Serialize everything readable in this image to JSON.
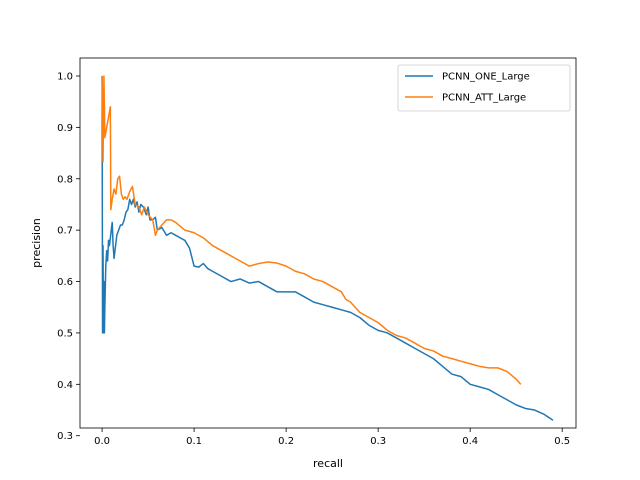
{
  "chart_data": {
    "type": "line",
    "title": "",
    "xlabel": "recall",
    "ylabel": "precision",
    "xlim": [
      -0.024,
      0.515
    ],
    "ylim": [
      0.315,
      1.035
    ],
    "xticks": [
      0.0,
      0.1,
      0.2,
      0.3,
      0.4,
      0.5
    ],
    "yticks": [
      0.3,
      0.4,
      0.5,
      0.6,
      0.7,
      0.8,
      0.9,
      1.0
    ],
    "grid": false,
    "legend": "top-right",
    "series": [
      {
        "name": "PCNN_ONE_Large",
        "color": "#1f77b4",
        "points": [
          [
            0.0,
            1.0
          ],
          [
            0.0005,
            0.5
          ],
          [
            0.001,
            0.67
          ],
          [
            0.0015,
            0.5
          ],
          [
            0.002,
            0.6
          ],
          [
            0.0025,
            0.5
          ],
          [
            0.003,
            0.55
          ],
          [
            0.004,
            0.63
          ],
          [
            0.005,
            0.66
          ],
          [
            0.006,
            0.64
          ],
          [
            0.007,
            0.68
          ],
          [
            0.008,
            0.67
          ],
          [
            0.01,
            0.7
          ],
          [
            0.011,
            0.715
          ],
          [
            0.012,
            0.67
          ],
          [
            0.013,
            0.645
          ],
          [
            0.014,
            0.66
          ],
          [
            0.016,
            0.69
          ],
          [
            0.018,
            0.7
          ],
          [
            0.02,
            0.71
          ],
          [
            0.022,
            0.71
          ],
          [
            0.024,
            0.72
          ],
          [
            0.026,
            0.735
          ],
          [
            0.028,
            0.74
          ],
          [
            0.03,
            0.76
          ],
          [
            0.032,
            0.75
          ],
          [
            0.034,
            0.76
          ],
          [
            0.036,
            0.745
          ],
          [
            0.038,
            0.755
          ],
          [
            0.04,
            0.735
          ],
          [
            0.042,
            0.75
          ],
          [
            0.045,
            0.745
          ],
          [
            0.048,
            0.73
          ],
          [
            0.05,
            0.745
          ],
          [
            0.052,
            0.72
          ],
          [
            0.055,
            0.72
          ],
          [
            0.058,
            0.725
          ],
          [
            0.06,
            0.7
          ],
          [
            0.065,
            0.705
          ],
          [
            0.07,
            0.69
          ],
          [
            0.075,
            0.695
          ],
          [
            0.08,
            0.69
          ],
          [
            0.085,
            0.685
          ],
          [
            0.09,
            0.68
          ],
          [
            0.095,
            0.665
          ],
          [
            0.1,
            0.63
          ],
          [
            0.105,
            0.628
          ],
          [
            0.11,
            0.635
          ],
          [
            0.115,
            0.625
          ],
          [
            0.12,
            0.62
          ],
          [
            0.13,
            0.61
          ],
          [
            0.14,
            0.6
          ],
          [
            0.15,
            0.605
          ],
          [
            0.16,
            0.597
          ],
          [
            0.17,
            0.6
          ],
          [
            0.18,
            0.59
          ],
          [
            0.19,
            0.58
          ],
          [
            0.2,
            0.58
          ],
          [
            0.21,
            0.58
          ],
          [
            0.22,
            0.57
          ],
          [
            0.23,
            0.56
          ],
          [
            0.24,
            0.555
          ],
          [
            0.25,
            0.55
          ],
          [
            0.26,
            0.545
          ],
          [
            0.27,
            0.54
          ],
          [
            0.28,
            0.53
          ],
          [
            0.29,
            0.515
          ],
          [
            0.3,
            0.505
          ],
          [
            0.31,
            0.5
          ],
          [
            0.32,
            0.49
          ],
          [
            0.33,
            0.48
          ],
          [
            0.34,
            0.47
          ],
          [
            0.35,
            0.46
          ],
          [
            0.36,
            0.45
          ],
          [
            0.37,
            0.435
          ],
          [
            0.38,
            0.42
          ],
          [
            0.39,
            0.415
          ],
          [
            0.4,
            0.4
          ],
          [
            0.41,
            0.395
          ],
          [
            0.42,
            0.39
          ],
          [
            0.43,
            0.38
          ],
          [
            0.44,
            0.37
          ],
          [
            0.45,
            0.36
          ],
          [
            0.46,
            0.353
          ],
          [
            0.47,
            0.35
          ],
          [
            0.48,
            0.342
          ],
          [
            0.49,
            0.33
          ]
        ]
      },
      {
        "name": "PCNN_ATT_Large",
        "color": "#ff7f0e",
        "points": [
          [
            0.0,
            1.0
          ],
          [
            0.001,
            0.833
          ],
          [
            0.002,
            1.0
          ],
          [
            0.003,
            0.88
          ],
          [
            0.005,
            0.9
          ],
          [
            0.007,
            0.92
          ],
          [
            0.009,
            0.94
          ],
          [
            0.0095,
            0.74
          ],
          [
            0.011,
            0.76
          ],
          [
            0.013,
            0.78
          ],
          [
            0.015,
            0.77
          ],
          [
            0.017,
            0.8
          ],
          [
            0.019,
            0.805
          ],
          [
            0.021,
            0.77
          ],
          [
            0.023,
            0.76
          ],
          [
            0.025,
            0.765
          ],
          [
            0.027,
            0.76
          ],
          [
            0.03,
            0.775
          ],
          [
            0.033,
            0.785
          ],
          [
            0.036,
            0.75
          ],
          [
            0.04,
            0.745
          ],
          [
            0.043,
            0.73
          ],
          [
            0.046,
            0.745
          ],
          [
            0.05,
            0.73
          ],
          [
            0.055,
            0.72
          ],
          [
            0.058,
            0.69
          ],
          [
            0.06,
            0.7
          ],
          [
            0.065,
            0.71
          ],
          [
            0.07,
            0.72
          ],
          [
            0.075,
            0.72
          ],
          [
            0.08,
            0.715
          ],
          [
            0.09,
            0.7
          ],
          [
            0.1,
            0.695
          ],
          [
            0.11,
            0.685
          ],
          [
            0.12,
            0.67
          ],
          [
            0.13,
            0.66
          ],
          [
            0.14,
            0.65
          ],
          [
            0.15,
            0.64
          ],
          [
            0.16,
            0.63
          ],
          [
            0.17,
            0.635
          ],
          [
            0.18,
            0.638
          ],
          [
            0.19,
            0.636
          ],
          [
            0.2,
            0.63
          ],
          [
            0.21,
            0.62
          ],
          [
            0.22,
            0.615
          ],
          [
            0.23,
            0.605
          ],
          [
            0.24,
            0.6
          ],
          [
            0.25,
            0.59
          ],
          [
            0.26,
            0.58
          ],
          [
            0.265,
            0.565
          ],
          [
            0.27,
            0.56
          ],
          [
            0.28,
            0.54
          ],
          [
            0.29,
            0.53
          ],
          [
            0.3,
            0.52
          ],
          [
            0.31,
            0.505
          ],
          [
            0.32,
            0.495
          ],
          [
            0.33,
            0.49
          ],
          [
            0.34,
            0.48
          ],
          [
            0.35,
            0.47
          ],
          [
            0.36,
            0.465
          ],
          [
            0.37,
            0.455
          ],
          [
            0.38,
            0.45
          ],
          [
            0.39,
            0.445
          ],
          [
            0.4,
            0.44
          ],
          [
            0.41,
            0.435
          ],
          [
            0.42,
            0.432
          ],
          [
            0.43,
            0.432
          ],
          [
            0.44,
            0.425
          ],
          [
            0.45,
            0.41
          ],
          [
            0.455,
            0.4
          ]
        ]
      }
    ]
  }
}
